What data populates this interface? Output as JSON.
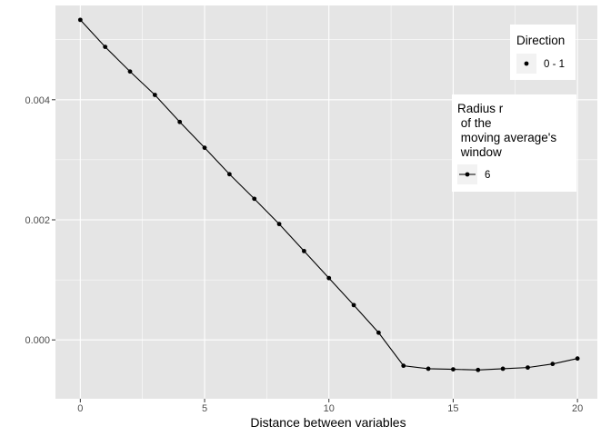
{
  "chart_data": {
    "type": "line",
    "xlabel": "Distance between variables",
    "ylabel": "",
    "xlim": [
      -1,
      20.8
    ],
    "ylim": [
      -0.00098,
      0.00557
    ],
    "x_ticks": [
      0,
      5,
      10,
      15,
      20
    ],
    "x_tick_labels": [
      "0",
      "5",
      "10",
      "15",
      "20"
    ],
    "y_ticks": [
      0.0,
      0.002,
      0.004
    ],
    "y_tick_labels": [
      "0.000",
      "0.002",
      "0.004"
    ],
    "grid": true,
    "series": [
      {
        "name": "6",
        "x": [
          0,
          1,
          2,
          3,
          4,
          5,
          6,
          7,
          8,
          9,
          10,
          11,
          12,
          13,
          14,
          15,
          16,
          17,
          18,
          19,
          20
        ],
        "values": [
          0.00533,
          0.00488,
          0.00447,
          0.00408,
          0.00363,
          0.0032,
          0.00276,
          0.00235,
          0.00193,
          0.00148,
          0.00103,
          0.00058,
          0.00012,
          -0.00043,
          -0.00048,
          -0.00049,
          -0.0005,
          -0.00048,
          -0.00046,
          -0.0004,
          -0.00031
        ]
      }
    ],
    "legends": [
      {
        "title": "Direction",
        "entries": [
          "0 - 1"
        ],
        "position": "top-right",
        "key": "point"
      },
      {
        "title_lines": [
          "Radius r",
          " of the",
          " moving average's",
          " window"
        ],
        "entries": [
          "6"
        ],
        "position": "right",
        "key": "line-point"
      }
    ],
    "colors": {
      "panel": "#e5e5e5",
      "grid": "#ffffff",
      "line": "#000000",
      "legend_key_bg": "#f2f2f2"
    }
  }
}
